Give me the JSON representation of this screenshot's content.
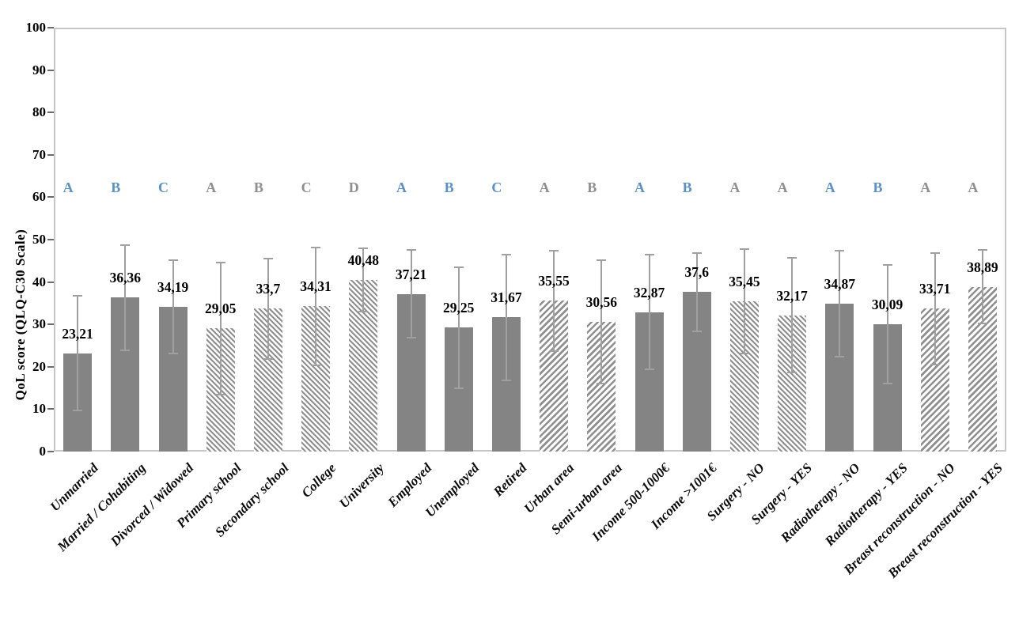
{
  "chart_data": {
    "type": "bar",
    "title": "",
    "ylabel": "QoL score (QLQ-C30  Scale)",
    "xlabel": "",
    "ylim": [
      0,
      100
    ],
    "yticks": [
      0,
      10,
      20,
      30,
      40,
      50,
      60,
      70,
      80,
      90,
      100
    ],
    "grid": false,
    "legend": "none",
    "decimal_separator": ",",
    "categories": [
      "Unmarried",
      "Married / Cohabiting",
      "Divorced / Widowed",
      "Primary school",
      "Secondary school",
      "College",
      "University",
      "Employed",
      "Unemployed",
      "Retired",
      "Urban area",
      "Semi-urban area",
      "Income 500-1000€",
      "Income >1001€",
      "Surgery - NO",
      "Surgery - YES",
      "Radiotherapy - NO",
      "Radiotherapy - YES",
      "Breast reconstruction - NO",
      "Breast reconstruction - YES"
    ],
    "values": [
      23.21,
      36.36,
      34.19,
      29.05,
      33.7,
      34.31,
      40.48,
      37.21,
      29.25,
      31.67,
      35.55,
      30.56,
      32.87,
      37.6,
      35.45,
      32.17,
      34.87,
      30.09,
      33.71,
      38.89
    ],
    "value_labels": [
      "23,21",
      "36,36",
      "34,19",
      "29,05",
      "33,7",
      "34,31",
      "40,48",
      "37,21",
      "29,25",
      "31,67",
      "35,55",
      "30,56",
      "32,87",
      "37,6",
      "35,45",
      "32,17",
      "34,87",
      "30,09",
      "33,71",
      "38,89"
    ],
    "errors": [
      13.6,
      12.4,
      11.0,
      15.6,
      11.9,
      13.9,
      7.5,
      10.3,
      14.3,
      14.8,
      11.9,
      14.6,
      13.5,
      9.3,
      12.4,
      13.5,
      12.5,
      14.0,
      13.1,
      8.6
    ],
    "letters": [
      "A",
      "B",
      "C",
      "A",
      "B",
      "C",
      "D",
      "A",
      "B",
      "C",
      "A",
      "B",
      "A",
      "B",
      "A",
      "A",
      "A",
      "B",
      "A",
      "A"
    ],
    "letter_colors": [
      "blue",
      "blue",
      "blue",
      "gray",
      "gray",
      "gray",
      "gray",
      "blue",
      "blue",
      "blue",
      "gray",
      "gray",
      "blue",
      "blue",
      "gray",
      "gray",
      "blue",
      "blue",
      "gray",
      "gray"
    ],
    "patterns": [
      "solid",
      "solid",
      "solid",
      "hatch-down",
      "hatch-down",
      "hatch-down",
      "hatch-down",
      "solid",
      "solid",
      "solid",
      "hatch-up",
      "hatch-up",
      "solid",
      "solid",
      "hatch-down",
      "hatch-down",
      "solid",
      "solid",
      "hatch-up",
      "hatch-up"
    ],
    "colors": {
      "bar_solid": "#848484",
      "hatch_stripe": "#8f8f8f",
      "error_bar": "#a0a0a0",
      "letter_blue": "#5b91c9",
      "letter_gray": "#8f8f8f",
      "axis_line": "#c6c6c6",
      "tick_mark": "#6a6a6a",
      "label_text": "#000000"
    }
  }
}
